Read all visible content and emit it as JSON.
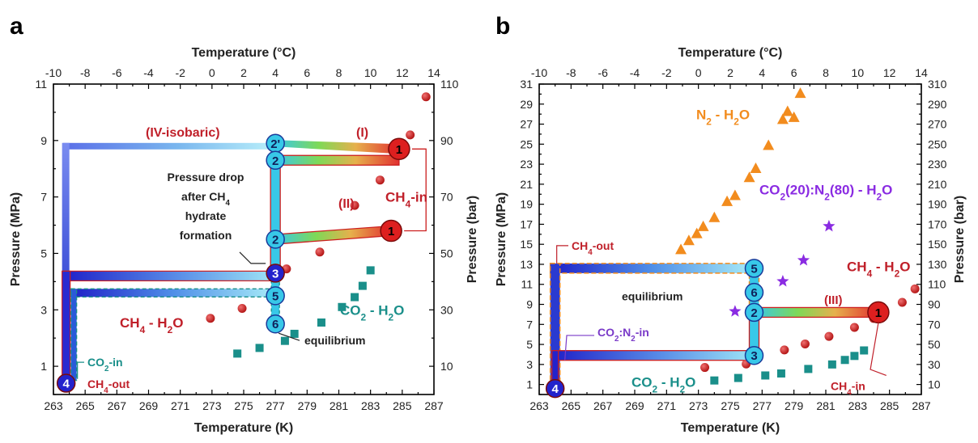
{
  "chart_data": [
    {
      "panel_label": "a",
      "type": "scatter",
      "xlabel_bottom": "Temperature (K)",
      "xlabel_top": "Temperature (°C)",
      "ylabel_left": "Pressure (MPa)",
      "ylabel_right": "Pressure (bar)",
      "xlim": [
        263,
        287
      ],
      "ylim": [
        0,
        11
      ],
      "xticks": [
        "263",
        "265",
        "267",
        "269",
        "271",
        "273",
        "275",
        "277",
        "279",
        "281",
        "283",
        "285",
        "287"
      ],
      "xticks_top": [
        "-10",
        "-8",
        "-6",
        "-4",
        "-2",
        "0",
        "2",
        "4",
        "6",
        "8",
        "10",
        "12",
        "14"
      ],
      "yticks": [
        "1",
        "3",
        "5",
        "7",
        "9",
        "11"
      ],
      "yticks_right": [
        "10",
        "30",
        "50",
        "70",
        "90",
        "110"
      ],
      "series": [
        {
          "name": "CH4 - H2O",
          "marker": "circle",
          "color": "#cc1f1f",
          "x": [
            272.9,
            274.9,
            277.7,
            279.8,
            282.0,
            283.6,
            285.5,
            286.5
          ],
          "y": [
            2.7,
            3.05,
            4.45,
            5.05,
            6.7,
            7.6,
            9.2,
            10.55
          ]
        },
        {
          "name": "CO2 - H2O",
          "marker": "square",
          "color": "#1a8f8a",
          "x": [
            274.6,
            276.0,
            277.6,
            278.2,
            279.9,
            281.2,
            282.0,
            282.5,
            283.0
          ],
          "y": [
            1.45,
            1.65,
            1.9,
            2.15,
            2.55,
            3.1,
            3.45,
            3.85,
            4.4
          ]
        }
      ],
      "annotations": {
        "iv_isobaric": "(IV-isobaric)",
        "step_i": "(I)",
        "step_ii": "(II)",
        "ch4_in": "CH",
        "ch4_in_sub": "4",
        "ch4_in_suffix": "-in",
        "pressure_drop_1": "Pressure drop",
        "pressure_drop_2": "after CH",
        "pressure_drop_2_sub": "4",
        "pressure_drop_3": "hydrate",
        "pressure_drop_4": "formation",
        "equilibrium": "equilibrium",
        "co2_in": "CO",
        "co2_in_sub": "2",
        "co2_in_suffix": "-in",
        "ch4_out": "CH",
        "ch4_out_sub": "4",
        "ch4_out_suffix": "-out",
        "ch4_h2o_a": "CH",
        "ch4_h2o_b": "4",
        "ch4_h2o_c": " - H",
        "ch4_h2o_d": "2",
        "ch4_h2o_e": "O",
        "co2_h2o_a": "CO",
        "co2_h2o_b": "2",
        "co2_h2o_c": " - H",
        "co2_h2o_d": "2",
        "co2_h2o_e": "O"
      },
      "nodes": [
        {
          "label": "1",
          "x": 284.8,
          "y": 8.7,
          "color": "#dd1f1f"
        },
        {
          "label": "1",
          "x": 284.3,
          "y": 5.8,
          "color": "#dd1f1f"
        },
        {
          "label": "2'",
          "x": 277.0,
          "y": 8.9,
          "color": "#38c8e8"
        },
        {
          "label": "2",
          "x": 277.0,
          "y": 8.3,
          "color": "#38c8e8"
        },
        {
          "label": "2",
          "x": 277.0,
          "y": 5.5,
          "color": "#38c8e8"
        },
        {
          "label": "3",
          "x": 277.0,
          "y": 4.3,
          "color": "#2323cc"
        },
        {
          "label": "5",
          "x": 277.0,
          "y": 3.5,
          "color": "#38c8e8"
        },
        {
          "label": "6",
          "x": 277.0,
          "y": 2.5,
          "color": "#38c8e8"
        },
        {
          "label": "4",
          "x": 263.8,
          "y": 0.4,
          "color": "#2323cc"
        }
      ]
    },
    {
      "panel_label": "b",
      "type": "scatter",
      "xlabel_bottom": "Temperature (K)",
      "xlabel_top": "Temperature (°C)",
      "ylabel_left": "Pressure (MPa)",
      "ylabel_right": "Pressure (bar)",
      "xlim": [
        263,
        287
      ],
      "ylim": [
        0,
        31
      ],
      "xticks": [
        "263",
        "265",
        "267",
        "269",
        "271",
        "273",
        "275",
        "277",
        "279",
        "281",
        "283",
        "285",
        "287"
      ],
      "xticks_top": [
        "-10",
        "-8",
        "-6",
        "-4",
        "-2",
        "0",
        "2",
        "4",
        "6",
        "8",
        "10",
        "12",
        "14"
      ],
      "yticks": [
        "1",
        "3",
        "5",
        "7",
        "9",
        "11",
        "13",
        "15",
        "17",
        "19",
        "21",
        "23",
        "25",
        "27",
        "29",
        "31"
      ],
      "yticks_right": [
        "10",
        "30",
        "50",
        "70",
        "90",
        "110",
        "130",
        "150",
        "170",
        "190",
        "210",
        "230",
        "250",
        "270",
        "290",
        "310"
      ],
      "series": [
        {
          "name": "N2 - H2O",
          "marker": "triangle",
          "color": "#f28c1e",
          "x": [
            271.9,
            272.4,
            272.9,
            273.3,
            274.0,
            274.8,
            275.3,
            276.2,
            276.6,
            277.4,
            278.3,
            278.6,
            279.0,
            279.4
          ],
          "y": [
            14.5,
            15.4,
            16.1,
            16.8,
            17.7,
            19.3,
            19.9,
            21.7,
            22.6,
            24.9,
            27.5,
            28.3,
            27.7,
            30.1
          ]
        },
        {
          "name": "CO2(20):N2(80) - H2O",
          "marker": "star",
          "color": "#8a2be2",
          "x": [
            275.3,
            278.3,
            279.6,
            281.2
          ],
          "y": [
            8.3,
            11.3,
            13.4,
            16.8
          ]
        },
        {
          "name": "CH4 - H2O",
          "marker": "circle",
          "color": "#cc1f1f",
          "x": [
            273.4,
            276.0,
            278.4,
            279.7,
            281.2,
            282.8,
            284.0,
            285.8,
            286.6
          ],
          "y": [
            2.7,
            3.05,
            4.45,
            5.05,
            5.8,
            6.7,
            7.6,
            9.2,
            10.55
          ]
        },
        {
          "name": "CO2 - H2O",
          "marker": "square",
          "color": "#1a8f8a",
          "x": [
            274.0,
            275.5,
            277.2,
            278.2,
            279.9,
            281.4,
            282.2,
            282.8,
            283.4
          ],
          "y": [
            1.4,
            1.65,
            1.9,
            2.1,
            2.55,
            3.0,
            3.45,
            3.85,
            4.4
          ]
        }
      ],
      "annotations": {
        "n2_h2o_a": "N",
        "n2_h2o_b": "2",
        "n2_h2o_c": " - H",
        "n2_h2o_d": "2",
        "n2_h2o_e": "O",
        "mix_a": "CO",
        "mix_b": "2",
        "mix_c": "(20):N",
        "mix_d": "2",
        "mix_e": "(80) - H",
        "mix_f": "2",
        "mix_g": "O",
        "ch4_h2o_a": "CH",
        "ch4_h2o_b": "4",
        "ch4_h2o_c": " - H",
        "ch4_h2o_d": "2",
        "ch4_h2o_e": "O",
        "co2_h2o_a": "CO",
        "co2_h2o_b": "2",
        "co2_h2o_c": " - H",
        "co2_h2o_d": "2",
        "co2_h2o_e": "O",
        "ch4_out": "CH",
        "ch4_out_sub": "4",
        "ch4_out_suffix": "-out",
        "equilibrium": "equilibrium",
        "step_iii": "(III)",
        "co2n2_in_a": "CO",
        "co2n2_in_b": "2",
        "co2n2_in_c": ":N",
        "co2n2_in_d": "2",
        "co2n2_in_e": "-in",
        "ch4_in": "CH",
        "ch4_in_sub": "4",
        "ch4_in_suffix": "-in"
      },
      "nodes": [
        {
          "label": "5",
          "x": 276.5,
          "y": 12.6,
          "color": "#38c8e8"
        },
        {
          "label": "6",
          "x": 276.5,
          "y": 10.2,
          "color": "#38c8e8"
        },
        {
          "label": "2",
          "x": 276.5,
          "y": 8.2,
          "color": "#38c8e8"
        },
        {
          "label": "1",
          "x": 284.3,
          "y": 8.2,
          "color": "#dd1f1f"
        },
        {
          "label": "3",
          "x": 276.5,
          "y": 3.9,
          "color": "#38c8e8"
        },
        {
          "label": "4",
          "x": 264.0,
          "y": 0.6,
          "color": "#2323cc"
        }
      ]
    }
  ]
}
